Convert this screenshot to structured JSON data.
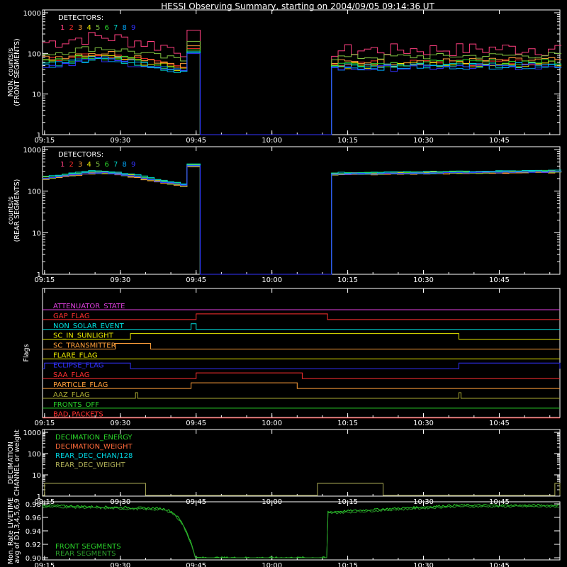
{
  "title": "HESSI Observing Summary, starting on 2004/09/05 09:14:36 UT",
  "time_ticks": [
    "09:15",
    "09:30",
    "09:45",
    "10:00",
    "10:15",
    "10:30",
    "10:45"
  ],
  "colors": {
    "det": [
      "#ff3f7f",
      "#ff2a2a",
      "#ff9f3a",
      "#e8e800",
      "#7fbf3f",
      "#2ad42a",
      "#00d4c8",
      "#00aaff",
      "#3333ff"
    ]
  },
  "chart_data": [
    {
      "type": "line",
      "id": "front",
      "ylabel": [
        "MON. counts/s",
        "(FRONT SEGMENTS)"
      ],
      "yscale": "log",
      "ylim": [
        1,
        1000
      ],
      "yticks": [
        "1",
        "10",
        "100",
        "1000"
      ],
      "legend_title": "DETECTORS:",
      "legend_items": [
        "1",
        "2",
        "3",
        "4",
        "5",
        "6",
        "7",
        "8",
        "9"
      ],
      "gap": [
        "09:45",
        "10:11"
      ],
      "series": [
        {
          "label": "1",
          "base_pre": 170,
          "base_post": 120
        },
        {
          "label": "2",
          "base_pre": 60,
          "base_post": 55
        },
        {
          "label": "3",
          "base_pre": 70,
          "base_post": 60
        },
        {
          "label": "4",
          "base_pre": 55,
          "base_post": 50
        },
        {
          "label": "5",
          "base_pre": 90,
          "base_post": 80
        },
        {
          "label": "6",
          "base_pre": 55,
          "base_post": 55
        },
        {
          "label": "7",
          "base_pre": 50,
          "base_post": 48
        },
        {
          "label": "8",
          "base_pre": 48,
          "base_post": 45
        },
        {
          "label": "9",
          "base_pre": 45,
          "base_post": 42
        }
      ]
    },
    {
      "type": "line",
      "id": "rear",
      "ylabel": [
        "counts/s",
        "(REAR SEGMENTS)"
      ],
      "yscale": "log",
      "ylim": [
        1,
        1000
      ],
      "yticks": [
        "1",
        "10",
        "100",
        "1000"
      ],
      "legend_title": "DETECTORS:",
      "legend_items": [
        "1",
        "2",
        "3",
        "4",
        "5",
        "6",
        "7",
        "8",
        "9"
      ],
      "gap": [
        "09:45",
        "10:11"
      ],
      "series": [
        {
          "label": "1",
          "base_pre": 190,
          "base_post": 260
        },
        {
          "label": "2",
          "base_pre": 185,
          "base_post": 255
        },
        {
          "label": "3",
          "base_pre": 175,
          "base_post": 245
        },
        {
          "label": "4",
          "base_pre": 195,
          "base_post": 265
        },
        {
          "label": "5",
          "base_pre": 180,
          "base_post": 250
        },
        {
          "label": "6",
          "base_pre": 200,
          "base_post": 270
        },
        {
          "label": "7",
          "base_pre": 205,
          "base_post": 275
        },
        {
          "label": "8",
          "base_pre": 190,
          "base_post": 258
        },
        {
          "label": "9",
          "base_pre": 185,
          "base_post": 255
        }
      ]
    },
    {
      "type": "flags",
      "id": "flags",
      "ylabel": [
        "Flags"
      ],
      "flags": [
        {
          "name": "ATTENUATOR_STATE",
          "color": "#e040e0",
          "segments": []
        },
        {
          "name": "GAP_FLAG",
          "color": "#ff3030",
          "segments": [
            [
              "09:45",
              "10:11"
            ]
          ]
        },
        {
          "name": "NON_SOLAR_EVENT",
          "color": "#00e0e0",
          "segments": [
            [
              "09:44",
              "09:45"
            ]
          ]
        },
        {
          "name": "SC_IN_SUNLIGHT",
          "color": "#e8e800",
          "segments": [
            [
              "09:32",
              "10:37"
            ]
          ]
        },
        {
          "name": "SC_TRANSMITTER",
          "color": "#ff9f3a",
          "segments": [
            [
              "09:29",
              "09:36"
            ]
          ]
        },
        {
          "name": "FLARE_FLAG",
          "color": "#e8e800",
          "segments": []
        },
        {
          "name": "ECLIPSE_FLAG",
          "color": "#3333ff",
          "segments": [
            [
              "09:15",
              "09:32"
            ],
            [
              "10:37",
              "10:57"
            ]
          ]
        },
        {
          "name": "SAA_FLAG",
          "color": "#ff3030",
          "segments": [
            [
              "09:45",
              "10:06"
            ]
          ]
        },
        {
          "name": "PARTICLE_FLAG",
          "color": "#ff9f3a",
          "segments": [
            [
              "09:44",
              "10:05"
            ]
          ]
        },
        {
          "name": "AAZ_FLAG",
          "color": "#aaaa33",
          "segments": [
            [
              "09:33",
              "09:33"
            ],
            [
              "10:37",
              "10:37"
            ]
          ]
        },
        {
          "name": "FRONTS_OFF",
          "color": "#2ad42a",
          "segments": []
        },
        {
          "name": "BAD_PACKETS",
          "color": "#ff3030",
          "segments": []
        }
      ]
    },
    {
      "type": "line",
      "id": "decim",
      "ylabel": [
        "DECIMATION",
        "CHANNEL or weight"
      ],
      "yscale": "log",
      "ylim": [
        1,
        1000
      ],
      "yticks": [
        "1",
        "10",
        "100",
        "1000"
      ],
      "legend_items": [
        {
          "name": "DECIMATION_ENERGY",
          "color": "#2ad42a"
        },
        {
          "name": "DECIMATION_WEIGHT",
          "color": "#ff6a3a"
        },
        {
          "name": "REAR_DEC_CHAN/128",
          "color": "#00d4e0"
        },
        {
          "name": "REAR_DEC_WEIGHT",
          "color": "#aaaa55"
        }
      ],
      "steps": [
        [
          "09:15",
          "09:35",
          4
        ],
        [
          "10:09",
          "10:22",
          4
        ],
        [
          "10:56",
          "10:57",
          4
        ]
      ]
    },
    {
      "type": "line",
      "id": "livetime",
      "ylabel": [
        "Mon. Rate LIVETIME",
        "avg of D1,3,4,5,6,9"
      ],
      "yscale": "linear",
      "ylim": [
        0.9,
        0.98
      ],
      "yticks": [
        "0.90",
        "0.92",
        "0.94",
        "0.96",
        "0.98"
      ],
      "legend_items": [
        {
          "name": "FRONT SEGMENTS",
          "color": "#2ad42a"
        },
        {
          "name": "REAR SEGMENTS",
          "color": "#2a9a2a"
        }
      ],
      "gap": [
        "09:45",
        "10:11"
      ]
    }
  ]
}
